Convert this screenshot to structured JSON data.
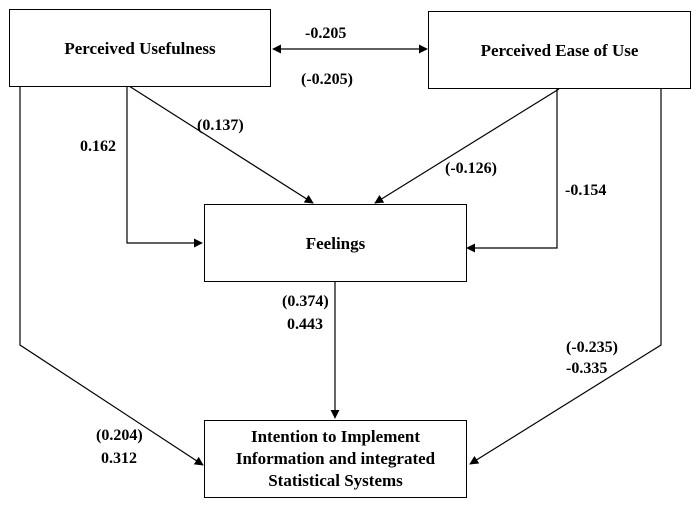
{
  "nodes": {
    "perceived_usefulness": {
      "label": "Perceived Usefulness"
    },
    "perceived_ease_of_use": {
      "label": "Perceived Ease of Use"
    },
    "feelings": {
      "label": "Feelings"
    },
    "intention": {
      "label": "Intention to Implement\nInformation and integrated\nStatistical Systems"
    }
  },
  "edges": {
    "pu_peou": {
      "from": "Perceived Usefulness",
      "to": "Perceived Ease of Use",
      "direction": "both",
      "value": "-0.205",
      "value_paren": "(-0.205)"
    },
    "pu_feelings_diag": {
      "from": "Perceived Usefulness",
      "to": "Feelings",
      "value_paren": "(0.137)"
    },
    "pu_feelings_elbow": {
      "from": "Perceived Usefulness",
      "to": "Feelings",
      "value": "0.162"
    },
    "peou_feelings_diag": {
      "from": "Perceived Ease of Use",
      "to": "Feelings",
      "value_paren": "(-0.126)"
    },
    "peou_feelings_elbow": {
      "from": "Perceived Ease of Use",
      "to": "Feelings",
      "value": "-0.154"
    },
    "feelings_intention": {
      "from": "Feelings",
      "to": "Intention to Implement Information and integrated Statistical Systems",
      "value_paren": "(0.374)",
      "value": "0.443"
    },
    "pu_intention": {
      "from": "Perceived Usefulness",
      "to": "Intention to Implement Information and integrated Statistical Systems",
      "value_paren": "(0.204)",
      "value": "0.312"
    },
    "peou_intention": {
      "from": "Perceived Ease of Use",
      "to": "Intention to Implement Information and integrated Statistical Systems",
      "value_paren": "(-0.235)",
      "value": "-0.335"
    }
  }
}
